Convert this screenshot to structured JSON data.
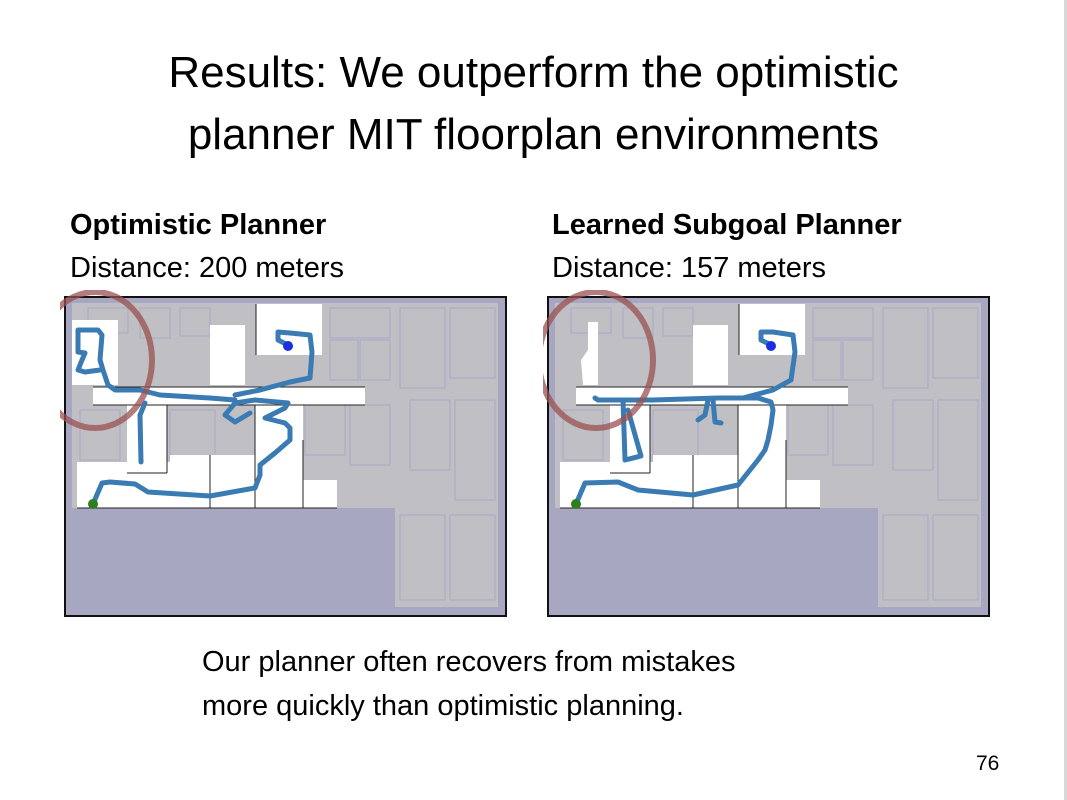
{
  "slide": {
    "title_line1": "Results: We outperform the optimistic",
    "title_line2": "planner MIT floorplan environments",
    "left": {
      "heading": "Optimistic Planner",
      "distance": "Distance: 200 meters"
    },
    "right": {
      "heading": "Learned Subgoal Planner",
      "distance": "Distance: 157 meters"
    },
    "body_line1": "Our planner often recovers from mistakes",
    "body_line2": "more quickly than optimistic planning.",
    "page_number": "76"
  },
  "colors": {
    "unknown": "#a7a7c1",
    "obstacle_gray": "#c0c0c4",
    "free": "#ffffff",
    "path": "#3b7bb3",
    "start": "#2e7d1e",
    "goal": "#1a2fe0",
    "highlight_circle": "#9a5252"
  }
}
